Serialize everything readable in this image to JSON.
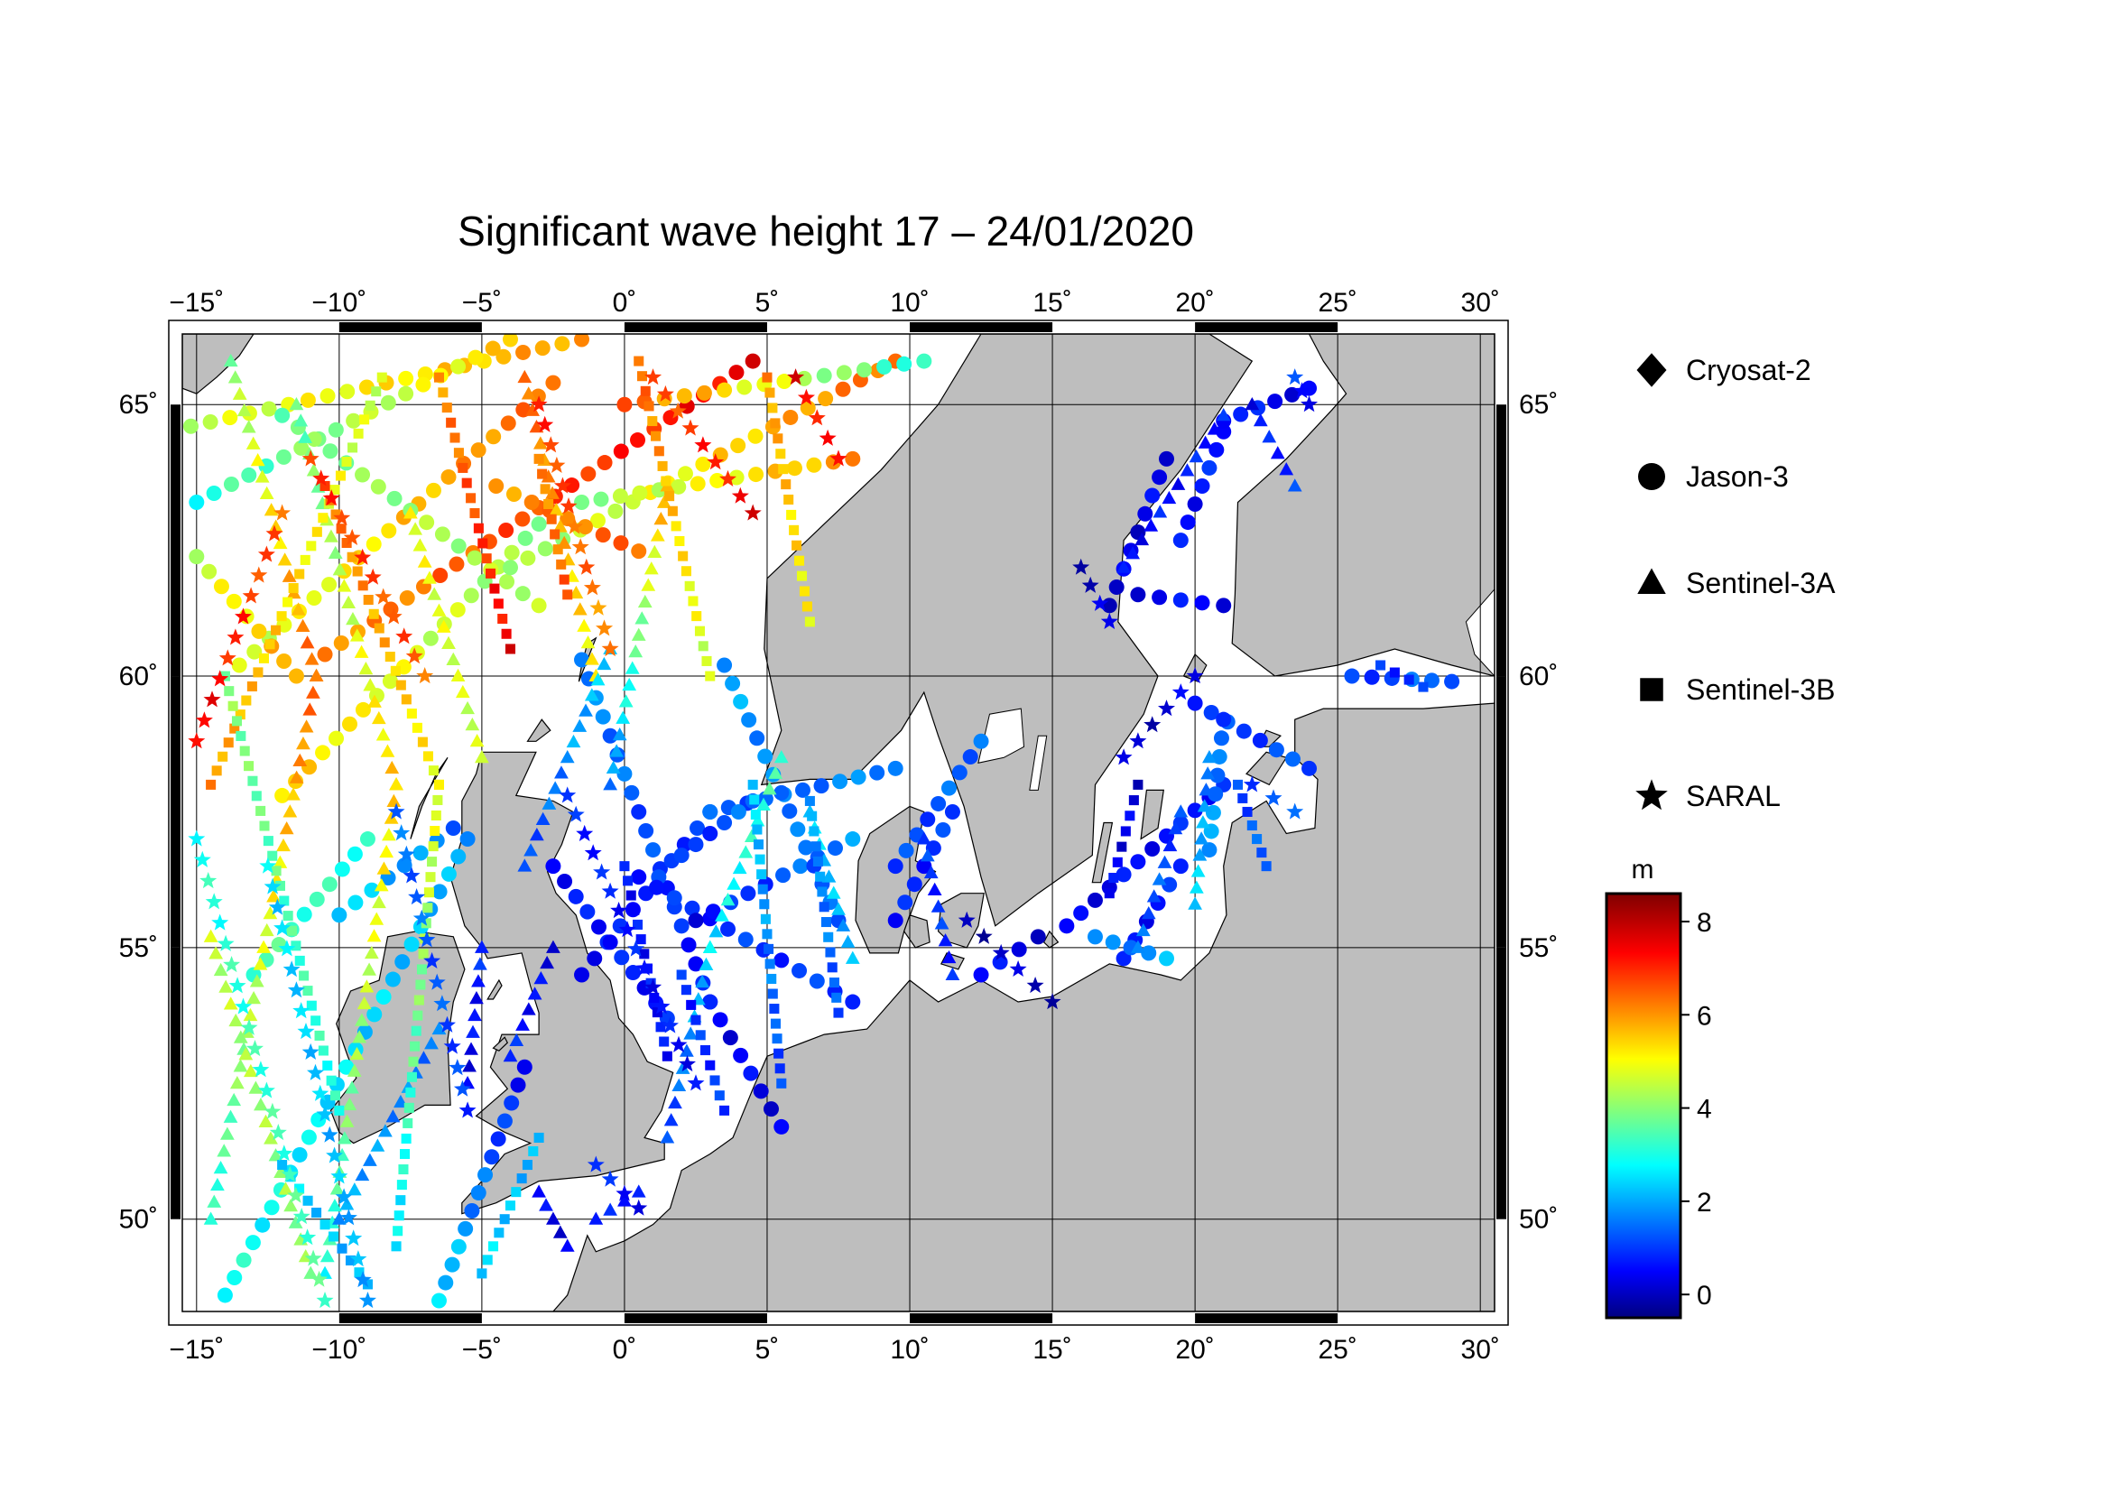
{
  "title": "Significant wave height 17 – 24/01/2020",
  "axes": {
    "lon_min": -15.5,
    "lon_max": 30.5,
    "lat_min": 48.3,
    "lat_max": 66.3,
    "lon_ticks": [
      {
        "value": -15,
        "label": "−15˚"
      },
      {
        "value": -10,
        "label": "−10˚"
      },
      {
        "value": -5,
        "label": "−5˚"
      },
      {
        "value": 0,
        "label": "0˚"
      },
      {
        "value": 5,
        "label": "5˚"
      },
      {
        "value": 10,
        "label": "10˚"
      },
      {
        "value": 15,
        "label": "15˚"
      },
      {
        "value": 20,
        "label": "20˚"
      },
      {
        "value": 25,
        "label": "25˚"
      },
      {
        "value": 30,
        "label": "30˚"
      }
    ],
    "lat_ticks": [
      {
        "value": 50,
        "label": "50˚"
      },
      {
        "value": 55,
        "label": "55˚"
      },
      {
        "value": 60,
        "label": "60˚"
      },
      {
        "value": 65,
        "label": "65˚"
      }
    ]
  },
  "legend": {
    "satellites": [
      {
        "name": "Cryosat-2",
        "marker": "diamond"
      },
      {
        "name": "Jason-3",
        "marker": "circle"
      },
      {
        "name": "Sentinel-3A",
        "marker": "triangle"
      },
      {
        "name": "Sentinel-3B",
        "marker": "square"
      },
      {
        "name": "SARAL",
        "marker": "star"
      }
    ]
  },
  "colorbar": {
    "unit": "m",
    "min": -0.5,
    "max": 8.6,
    "ticks": [
      {
        "value": 0,
        "label": "0"
      },
      {
        "value": 2,
        "label": "2"
      },
      {
        "value": 4,
        "label": "4"
      },
      {
        "value": 6,
        "label": "6"
      },
      {
        "value": 8,
        "label": "8"
      }
    ]
  },
  "colors": {
    "land": "#bebebe",
    "sea": "#ffffff",
    "grid": "#000000"
  },
  "tracks": [
    {
      "sat": "Jason-3",
      "from": [
        -15.2,
        64.6
      ],
      "to": [
        -1.5,
        66.2
      ],
      "swh": [
        4.5,
        6.0
      ]
    },
    {
      "sat": "Jason-3",
      "from": [
        -15.0,
        63.2
      ],
      "to": [
        -4.0,
        66.2
      ],
      "swh": [
        3.0,
        5.5
      ]
    },
    {
      "sat": "Jason-3",
      "from": [
        -13.5,
        60.2
      ],
      "to": [
        -2.5,
        65.4
      ],
      "swh": [
        4.5,
        6.5
      ]
    },
    {
      "sat": "Jason-3",
      "from": [
        -10.5,
        60.4
      ],
      "to": [
        4.5,
        65.8
      ],
      "swh": [
        6.0,
        7.5
      ]
    },
    {
      "sat": "Jason-3",
      "from": [
        -12.0,
        57.8
      ],
      "to": [
        -3.0,
        62.8
      ],
      "swh": [
        5.5,
        4.0
      ]
    },
    {
      "sat": "Jason-3",
      "from": [
        -15.0,
        62.2
      ],
      "to": [
        -11.5,
        60.0
      ],
      "swh": [
        4.5,
        6.0
      ]
    },
    {
      "sat": "Jason-3",
      "from": [
        -12.0,
        64.8
      ],
      "to": [
        -3.0,
        61.3
      ],
      "swh": [
        3.8,
        4.5
      ]
    },
    {
      "sat": "Jason-3",
      "from": [
        -4.0,
        62.0
      ],
      "to": [
        9.5,
        65.8
      ],
      "swh": [
        4.0,
        6.5
      ]
    },
    {
      "sat": "Jason-3",
      "from": [
        -4.5,
        63.5
      ],
      "to": [
        0.5,
        62.3
      ],
      "swh": [
        6.0,
        6.5
      ]
    },
    {
      "sat": "Jason-3",
      "from": [
        0.0,
        65.0
      ],
      "to": [
        10.5,
        65.8
      ],
      "swh": [
        6.5,
        3.0
      ]
    },
    {
      "sat": "Jason-3",
      "from": [
        -1.5,
        63.2
      ],
      "to": [
        8.0,
        64.0
      ],
      "swh": [
        4.0,
        6.0
      ]
    },
    {
      "sat": "Jason-3",
      "from": [
        -14.0,
        48.6
      ],
      "to": [
        -5.5,
        57.0
      ],
      "swh": [
        3.0,
        2.0
      ]
    },
    {
      "sat": "Jason-3",
      "from": [
        -13.0,
        54.5
      ],
      "to": [
        -9.0,
        57.0
      ],
      "swh": [
        3.5,
        3.0
      ]
    },
    {
      "sat": "Jason-3",
      "from": [
        -10.0,
        55.6
      ],
      "to": [
        -6.0,
        57.2
      ],
      "swh": [
        2.5,
        1.5
      ]
    },
    {
      "sat": "Jason-3",
      "from": [
        -6.5,
        48.5
      ],
      "to": [
        -3.5,
        52.8
      ],
      "swh": [
        2.5,
        0.5
      ]
    },
    {
      "sat": "Jason-3",
      "from": [
        -1.5,
        60.3
      ],
      "to": [
        3.0,
        54.0
      ],
      "swh": [
        1.8,
        0.5
      ]
    },
    {
      "sat": "Jason-3",
      "from": [
        3.0,
        54.0
      ],
      "to": [
        5.5,
        51.7
      ],
      "swh": [
        0.5,
        0.3
      ]
    },
    {
      "sat": "Jason-3",
      "from": [
        -1.5,
        54.5
      ],
      "to": [
        3.0,
        57.5
      ],
      "swh": [
        0.5,
        1.2
      ]
    },
    {
      "sat": "Jason-3",
      "from": [
        3.0,
        57.5
      ],
      "to": [
        9.5,
        58.3
      ],
      "swh": [
        1.2,
        1.8
      ]
    },
    {
      "sat": "Jason-3",
      "from": [
        -2.5,
        56.5
      ],
      "to": [
        1.5,
        53.7
      ],
      "swh": [
        0.6,
        0.7
      ]
    },
    {
      "sat": "Jason-3",
      "from": [
        0.5,
        56.3
      ],
      "to": [
        8.0,
        54.0
      ],
      "swh": [
        0.8,
        1.0
      ]
    },
    {
      "sat": "Jason-3",
      "from": [
        2.0,
        56.7
      ],
      "to": [
        4.5,
        57.7
      ],
      "swh": [
        0.8,
        1.5
      ]
    },
    {
      "sat": "Jason-3",
      "from": [
        2.5,
        55.5
      ],
      "to": [
        8.0,
        57.0
      ],
      "swh": [
        0.5,
        1.8
      ]
    },
    {
      "sat": "Jason-3",
      "from": [
        3.5,
        60.2
      ],
      "to": [
        7.5,
        55.5
      ],
      "swh": [
        2.0,
        1.2
      ]
    },
    {
      "sat": "Jason-3",
      "from": [
        9.5,
        55.5
      ],
      "to": [
        11.5,
        57.5
      ],
      "swh": [
        0.6,
        1.0
      ]
    },
    {
      "sat": "Jason-3",
      "from": [
        9.5,
        56.5
      ],
      "to": [
        12.5,
        58.8
      ],
      "swh": [
        1.0,
        1.5
      ]
    },
    {
      "sat": "Jason-3",
      "from": [
        12.5,
        54.5
      ],
      "to": [
        14.5,
        55.2
      ],
      "swh": [
        0.5,
        0.3
      ]
    },
    {
      "sat": "Jason-3",
      "from": [
        15.5,
        55.4
      ],
      "to": [
        21.0,
        58.0
      ],
      "swh": [
        0.3,
        0.8
      ]
    },
    {
      "sat": "Jason-3",
      "from": [
        17.5,
        54.8
      ],
      "to": [
        19.5,
        56.5
      ],
      "swh": [
        0.5,
        0.8
      ]
    },
    {
      "sat": "Jason-3",
      "from": [
        16.5,
        55.2
      ],
      "to": [
        19.0,
        54.8
      ],
      "swh": [
        1.5,
        2.0
      ]
    },
    {
      "sat": "Jason-3",
      "from": [
        17.0,
        61.3
      ],
      "to": [
        19.0,
        64.0
      ],
      "swh": [
        0.2,
        0.4
      ]
    },
    {
      "sat": "Jason-3",
      "from": [
        18.0,
        61.5
      ],
      "to": [
        21.0,
        61.3
      ],
      "swh": [
        0.4,
        0.5
      ]
    },
    {
      "sat": "Jason-3",
      "from": [
        19.5,
        62.5
      ],
      "to": [
        21.0,
        64.5
      ],
      "swh": [
        0.5,
        0.8
      ]
    },
    {
      "sat": "Jason-3",
      "from": [
        21.0,
        64.7
      ],
      "to": [
        24.0,
        65.3
      ],
      "swh": [
        0.8,
        0.3
      ]
    },
    {
      "sat": "Jason-3",
      "from": [
        20.0,
        59.5
      ],
      "to": [
        24.0,
        58.3
      ],
      "swh": [
        1.0,
        1.2
      ]
    },
    {
      "sat": "Jason-3",
      "from": [
        25.5,
        60.0
      ],
      "to": [
        29.0,
        59.9
      ],
      "swh": [
        1.0,
        1.5
      ]
    },
    {
      "sat": "Jason-3",
      "from": [
        21.0,
        59.2
      ],
      "to": [
        20.5,
        56.8
      ],
      "swh": [
        1.2,
        2.0
      ]
    },
    {
      "sat": "Sentinel-3A",
      "from": [
        -13.8,
        65.8
      ],
      "to": [
        -10.8,
        60.0
      ],
      "swh": [
        4.0,
        6.5
      ]
    },
    {
      "sat": "Sentinel-3A",
      "from": [
        -10.8,
        60.0
      ],
      "to": [
        -14.5,
        50.0
      ],
      "swh": [
        6.5,
        3.0
      ]
    },
    {
      "sat": "Sentinel-3A",
      "from": [
        -11.5,
        65.0
      ],
      "to": [
        -8.0,
        58.0
      ],
      "swh": [
        3.5,
        5.5
      ]
    },
    {
      "sat": "Sentinel-3A",
      "from": [
        -8.0,
        58.0
      ],
      "to": [
        -10.5,
        49.0
      ],
      "swh": [
        5.5,
        3.0
      ]
    },
    {
      "sat": "Sentinel-3A",
      "from": [
        -7.5,
        63.0
      ],
      "to": [
        -5.0,
        58.5
      ],
      "swh": [
        5.0,
        4.5
      ]
    },
    {
      "sat": "Sentinel-3A",
      "from": [
        -3.5,
        65.5
      ],
      "to": [
        -1.0,
        60.0
      ],
      "swh": [
        6.5,
        5.0
      ]
    },
    {
      "sat": "Sentinel-3A",
      "from": [
        1.5,
        63.5
      ],
      "to": [
        -0.5,
        58.0
      ],
      "swh": [
        6.0,
        1.5
      ]
    },
    {
      "sat": "Sentinel-3A",
      "from": [
        -0.5,
        60.5
      ],
      "to": [
        -3.5,
        56.5
      ],
      "swh": [
        2.5,
        1.0
      ]
    },
    {
      "sat": "Sentinel-3A",
      "from": [
        5.5,
        58.5
      ],
      "to": [
        3.0,
        55.0
      ],
      "swh": [
        3.5,
        2.5
      ]
    },
    {
      "sat": "Sentinel-3A",
      "from": [
        3.0,
        55.0
      ],
      "to": [
        1.5,
        51.5
      ],
      "swh": [
        2.5,
        1.0
      ]
    },
    {
      "sat": "Sentinel-3A",
      "from": [
        6.5,
        57.5
      ],
      "to": [
        8.0,
        54.8
      ],
      "swh": [
        2.5,
        2.0
      ]
    },
    {
      "sat": "Sentinel-3A",
      "from": [
        -14.5,
        55.2
      ],
      "to": [
        -11.0,
        49.0
      ],
      "swh": [
        4.5,
        4.0
      ]
    },
    {
      "sat": "Sentinel-3A",
      "from": [
        -5.0,
        55.0
      ],
      "to": [
        -5.5,
        52.5
      ],
      "swh": [
        0.8,
        0.3
      ]
    },
    {
      "sat": "Sentinel-3A",
      "from": [
        -4.0,
        53.0
      ],
      "to": [
        -2.5,
        55.0
      ],
      "swh": [
        0.8,
        0.3
      ]
    },
    {
      "sat": "Sentinel-3A",
      "from": [
        -3.0,
        50.5
      ],
      "to": [
        -2.0,
        49.5
      ],
      "swh": [
        0.4,
        0.3
      ]
    },
    {
      "sat": "Sentinel-3A",
      "from": [
        -1.0,
        50.0
      ],
      "to": [
        0.5,
        50.5
      ],
      "swh": [
        0.5,
        1.0
      ]
    },
    {
      "sat": "Sentinel-3A",
      "from": [
        -10.0,
        50.0
      ],
      "to": [
        -6.5,
        53.5
      ],
      "swh": [
        2.0,
        1.5
      ]
    },
    {
      "sat": "Sentinel-3A",
      "from": [
        17.5,
        62.0
      ],
      "to": [
        21.0,
        64.8
      ],
      "swh": [
        0.5,
        0.8
      ]
    },
    {
      "sat": "Sentinel-3A",
      "from": [
        22.0,
        65.0
      ],
      "to": [
        23.5,
        63.5
      ],
      "swh": [
        0.5,
        1.0
      ]
    },
    {
      "sat": "Sentinel-3A",
      "from": [
        19.5,
        57.5
      ],
      "to": [
        18.0,
        55.0
      ],
      "swh": [
        1.0,
        1.5
      ]
    },
    {
      "sat": "Sentinel-3A",
      "from": [
        10.5,
        57.0
      ],
      "to": [
        11.5,
        54.5
      ],
      "swh": [
        1.0,
        0.8
      ]
    },
    {
      "sat": "Sentinel-3A",
      "from": [
        20.5,
        58.5
      ],
      "to": [
        20.0,
        55.8
      ],
      "swh": [
        1.5,
        2.5
      ]
    },
    {
      "sat": "Sentinel-3B",
      "from": [
        -8.5,
        65.5
      ],
      "to": [
        -14.5,
        58.0
      ],
      "swh": [
        4.5,
        6.0
      ]
    },
    {
      "sat": "Sentinel-3B",
      "from": [
        -14.0,
        60.0
      ],
      "to": [
        -10.0,
        52.0
      ],
      "swh": [
        4.0,
        3.0
      ]
    },
    {
      "sat": "Sentinel-3B",
      "from": [
        -10.5,
        63.5
      ],
      "to": [
        -6.5,
        58.0
      ],
      "swh": [
        6.5,
        5.0
      ]
    },
    {
      "sat": "Sentinel-3B",
      "from": [
        -6.5,
        58.0
      ],
      "to": [
        -8.0,
        49.5
      ],
      "swh": [
        5.0,
        2.5
      ]
    },
    {
      "sat": "Sentinel-3B",
      "from": [
        -6.5,
        65.5
      ],
      "to": [
        -4.0,
        60.5
      ],
      "swh": [
        6.0,
        7.5
      ]
    },
    {
      "sat": "Sentinel-3B",
      "from": [
        -3.0,
        64.0
      ],
      "to": [
        -2.0,
        61.5
      ],
      "swh": [
        6.0,
        6.5
      ]
    },
    {
      "sat": "Sentinel-3B",
      "from": [
        0.5,
        65.8
      ],
      "to": [
        3.0,
        60.0
      ],
      "swh": [
        6.5,
        4.5
      ]
    },
    {
      "sat": "Sentinel-3B",
      "from": [
        5.0,
        65.5
      ],
      "to": [
        6.5,
        61.0
      ],
      "swh": [
        6.0,
        5.0
      ]
    },
    {
      "sat": "Sentinel-3B",
      "from": [
        4.5,
        58.0
      ],
      "to": [
        5.5,
        52.5
      ],
      "swh": [
        2.5,
        1.0
      ]
    },
    {
      "sat": "Sentinel-3B",
      "from": [
        6.5,
        57.7
      ],
      "to": [
        7.5,
        53.8
      ],
      "swh": [
        2.0,
        1.2
      ]
    },
    {
      "sat": "Sentinel-3B",
      "from": [
        0.0,
        56.5
      ],
      "to": [
        1.5,
        53.0
      ],
      "swh": [
        0.6,
        0.6
      ]
    },
    {
      "sat": "Sentinel-3B",
      "from": [
        2.0,
        54.5
      ],
      "to": [
        3.5,
        52.0
      ],
      "swh": [
        0.8,
        1.0
      ]
    },
    {
      "sat": "Sentinel-3B",
      "from": [
        -12.0,
        51.0
      ],
      "to": [
        -9.0,
        48.8
      ],
      "swh": [
        2.5,
        2.0
      ]
    },
    {
      "sat": "Sentinel-3B",
      "from": [
        -3.0,
        51.5
      ],
      "to": [
        -5.0,
        49.0
      ],
      "swh": [
        2.0,
        2.5
      ]
    },
    {
      "sat": "Sentinel-3B",
      "from": [
        18.0,
        58.0
      ],
      "to": [
        17.0,
        56.0
      ],
      "swh": [
        0.2,
        0.5
      ]
    },
    {
      "sat": "Sentinel-3B",
      "from": [
        26.5,
        60.2
      ],
      "to": [
        28.0,
        59.8
      ],
      "swh": [
        1.0,
        0.8
      ]
    },
    {
      "sat": "Sentinel-3B",
      "from": [
        21.5,
        58.0
      ],
      "to": [
        22.5,
        56.5
      ],
      "swh": [
        1.0,
        1.5
      ]
    },
    {
      "sat": "SARAL",
      "from": [
        -15.0,
        58.8
      ],
      "to": [
        -12.0,
        63.0
      ],
      "swh": [
        7.5,
        6.5
      ]
    },
    {
      "sat": "SARAL",
      "from": [
        -11.0,
        64.0
      ],
      "to": [
        -7.0,
        60.0
      ],
      "swh": [
        7.0,
        6.5
      ]
    },
    {
      "sat": "SARAL",
      "from": [
        -3.0,
        65.0
      ],
      "to": [
        -0.5,
        60.5
      ],
      "swh": [
        7.0,
        6.0
      ]
    },
    {
      "sat": "SARAL",
      "from": [
        1.0,
        65.5
      ],
      "to": [
        4.5,
        63.0
      ],
      "swh": [
        6.5,
        7.5
      ]
    },
    {
      "sat": "SARAL",
      "from": [
        6.0,
        65.5
      ],
      "to": [
        7.5,
        64.0
      ],
      "swh": [
        7.5,
        7.0
      ]
    },
    {
      "sat": "SARAL",
      "from": [
        -15.0,
        57.0
      ],
      "to": [
        -10.5,
        48.5
      ],
      "swh": [
        3.0,
        3.5
      ]
    },
    {
      "sat": "SARAL",
      "from": [
        -12.5,
        56.5
      ],
      "to": [
        -9.0,
        48.5
      ],
      "swh": [
        2.5,
        2.0
      ]
    },
    {
      "sat": "SARAL",
      "from": [
        -8.0,
        57.5
      ],
      "to": [
        -5.5,
        52.0
      ],
      "swh": [
        1.5,
        1.0
      ]
    },
    {
      "sat": "SARAL",
      "from": [
        -2.0,
        57.8
      ],
      "to": [
        2.5,
        52.5
      ],
      "swh": [
        0.8,
        0.5
      ]
    },
    {
      "sat": "SARAL",
      "from": [
        0.5,
        50.2
      ],
      "to": [
        -1.0,
        51.0
      ],
      "swh": [
        0.5,
        0.8
      ]
    },
    {
      "sat": "SARAL",
      "from": [
        12.0,
        55.5
      ],
      "to": [
        15.0,
        54.0
      ],
      "swh": [
        0.0,
        0.0
      ]
    },
    {
      "sat": "SARAL",
      "from": [
        17.5,
        58.5
      ],
      "to": [
        20.0,
        60.0
      ],
      "swh": [
        0.0,
        0.3
      ]
    },
    {
      "sat": "SARAL",
      "from": [
        23.5,
        65.5
      ],
      "to": [
        24.0,
        65.0
      ],
      "swh": [
        1.0,
        0.5
      ]
    },
    {
      "sat": "SARAL",
      "from": [
        22.0,
        58.0
      ],
      "to": [
        23.5,
        57.5
      ],
      "swh": [
        1.2,
        1.2
      ]
    },
    {
      "sat": "SARAL",
      "from": [
        16.0,
        62.0
      ],
      "to": [
        17.0,
        61.0
      ],
      "swh": [
        0.0,
        0.2
      ]
    }
  ]
}
